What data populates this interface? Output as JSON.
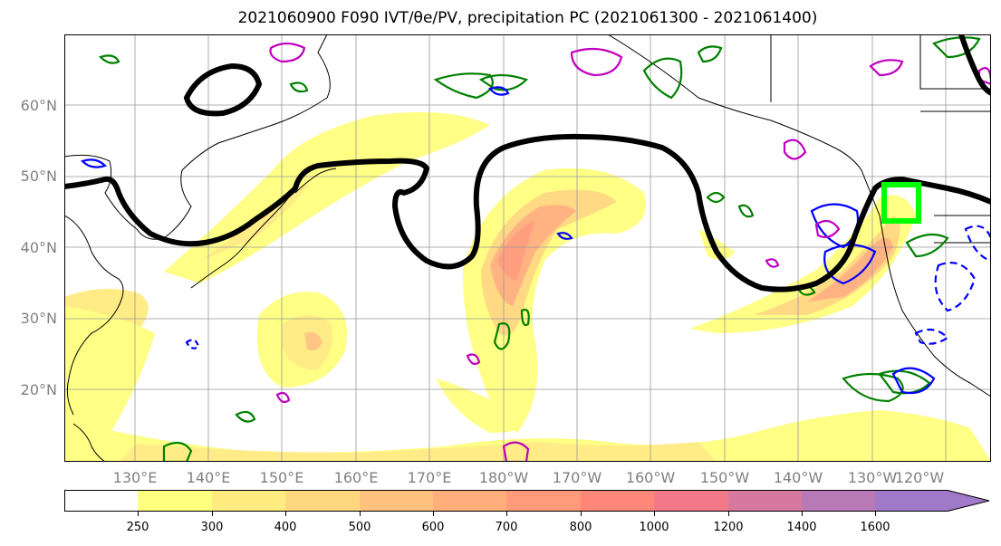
{
  "title": "2021060900 F090 IVT/θe/PV, precipitation PC (2021061300 - 2021061400)",
  "lat_labels": [
    "60°N",
    "50°N",
    "40°N",
    "30°N",
    "20°N"
  ],
  "lon_labels": [
    "130°E",
    "140°E",
    "150°E",
    "160°E",
    "170°E",
    "180°W",
    "170°W",
    "160°W",
    "150°W",
    "140°W",
    "130°W",
    "120°W"
  ],
  "colorbar": {
    "ticks": [
      "250",
      "300",
      "400",
      "500",
      "600",
      "700",
      "800",
      "1000",
      "1200",
      "1400",
      "1600"
    ],
    "colors": [
      "#ffffff",
      "#ffff80",
      "#ffeb80",
      "#ffd77e",
      "#ffc27e",
      "#ffae7c",
      "#ff9a7a",
      "#ff8678",
      "#f27a88",
      "#d57a9e",
      "#b77ab7",
      "#a07ac8"
    ]
  },
  "colors": {
    "pv_contour": "#000000",
    "highlight_box": "#00ff00",
    "precip_green": "#008000",
    "precip_blue": "#0000ff",
    "precip_magenta": "#c000c0"
  }
}
